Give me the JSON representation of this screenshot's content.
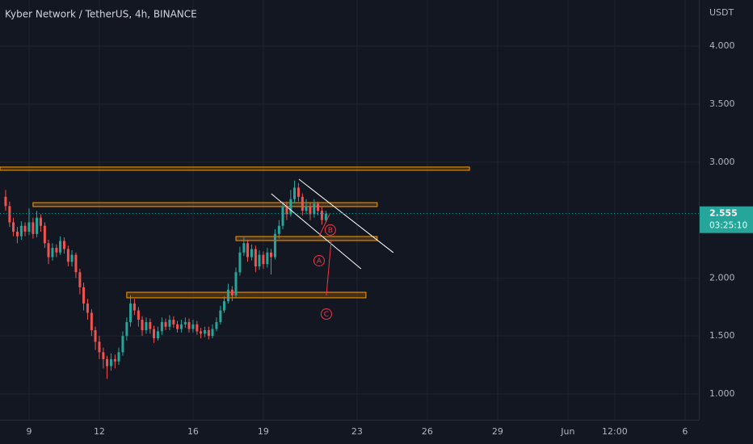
{
  "chart_data": {
    "type": "candlestick",
    "title": "Kyber Network / TetherUS, 4h, BINANCE",
    "currency": "USDT",
    "countdown": "03:25:10",
    "up_color": "#26a69a",
    "down_color": "#ef5350",
    "xlim": [
      7.76,
      37.59
    ],
    "xticks": [
      9,
      12,
      16,
      19,
      23,
      26,
      29,
      {
        "value": 32,
        "label": "Jun"
      },
      {
        "value": 34,
        "label": "12:00"
      },
      {
        "value": 37,
        "label": "6"
      }
    ],
    "ylim": [
      0.777,
      4.398
    ],
    "yticks": [
      {
        "value": 1,
        "label": "1.000"
      },
      {
        "value": 1.5,
        "label": "1.500"
      },
      {
        "value": 2,
        "label": "2.000"
      },
      {
        "value": 3,
        "label": "3.000"
      },
      {
        "value": 3.5,
        "label": "3.500"
      },
      {
        "value": 4,
        "label": "4.000"
      }
    ],
    "grid": true,
    "x": [
      8,
      8.17,
      8.33,
      8.5,
      8.67,
      8.83,
      9,
      9.17,
      9.33,
      9.5,
      9.67,
      9.83,
      10,
      10.17,
      10.33,
      10.5,
      10.67,
      10.83,
      11,
      11.17,
      11.33,
      11.5,
      11.67,
      11.83,
      12,
      12.17,
      12.33,
      12.5,
      12.67,
      12.83,
      13,
      13.17,
      13.33,
      13.5,
      13.67,
      13.83,
      14,
      14.17,
      14.33,
      14.5,
      14.67,
      14.83,
      15,
      15.17,
      15.33,
      15.5,
      15.67,
      15.83,
      16,
      16.17,
      16.33,
      16.5,
      16.67,
      16.83,
      17,
      17.17,
      17.33,
      17.5,
      17.67,
      17.83,
      18,
      18.17,
      18.33,
      18.5,
      18.67,
      18.83,
      19,
      19.17,
      19.33,
      19.5,
      19.67,
      19.83,
      20,
      20.17,
      20.33,
      20.5,
      20.67,
      20.83,
      21,
      21.17,
      21.33,
      21.5,
      21.67
    ],
    "open": [
      2.7,
      2.62,
      2.48,
      2.4,
      2.36,
      2.45,
      2.4,
      2.48,
      2.38,
      2.52,
      2.45,
      2.3,
      2.18,
      2.26,
      2.22,
      2.32,
      2.25,
      2.14,
      2.2,
      2.05,
      1.92,
      1.78,
      1.7,
      1.55,
      1.45,
      1.36,
      1.3,
      1.24,
      1.3,
      1.28,
      1.36,
      1.5,
      1.62,
      1.78,
      1.72,
      1.64,
      1.55,
      1.62,
      1.56,
      1.48,
      1.54,
      1.62,
      1.58,
      1.64,
      1.6,
      1.56,
      1.6,
      1.62,
      1.56,
      1.6,
      1.54,
      1.52,
      1.55,
      1.5,
      1.56,
      1.62,
      1.72,
      1.8,
      1.9,
      1.85,
      2.05,
      2.22,
      2.3,
      2.18,
      2.25,
      2.1,
      2.2,
      2.12,
      2.22,
      2.18,
      2.38,
      2.45,
      2.62,
      2.55,
      2.68,
      2.78,
      2.7,
      2.58,
      2.62,
      2.55,
      2.64,
      2.58,
      2.5
    ],
    "high": [
      2.76,
      2.66,
      2.52,
      2.44,
      2.49,
      2.48,
      2.6,
      2.52,
      2.58,
      2.55,
      2.48,
      2.33,
      2.3,
      2.29,
      2.36,
      2.35,
      2.28,
      2.24,
      2.22,
      2.08,
      1.96,
      1.82,
      1.73,
      1.58,
      1.5,
      1.4,
      1.33,
      1.35,
      1.34,
      1.4,
      1.54,
      1.66,
      1.85,
      1.82,
      1.75,
      1.67,
      1.66,
      1.65,
      1.59,
      1.58,
      1.66,
      1.65,
      1.68,
      1.67,
      1.63,
      1.64,
      1.66,
      1.65,
      1.64,
      1.63,
      1.57,
      1.58,
      1.58,
      1.6,
      1.66,
      1.76,
      1.84,
      1.95,
      1.93,
      2.09,
      2.27,
      2.36,
      2.33,
      2.29,
      2.28,
      2.24,
      2.23,
      2.26,
      2.25,
      2.42,
      2.5,
      2.66,
      2.66,
      2.76,
      2.84,
      2.82,
      2.73,
      2.68,
      2.65,
      2.68,
      2.66,
      2.61,
      2.58
    ],
    "low": [
      2.58,
      2.44,
      2.36,
      2.3,
      2.33,
      2.36,
      2.37,
      2.34,
      2.35,
      2.4,
      2.26,
      2.12,
      2.15,
      2.18,
      2.2,
      2.21,
      2.1,
      2.1,
      2.0,
      1.86,
      1.72,
      1.64,
      1.5,
      1.38,
      1.3,
      1.22,
      1.13,
      1.2,
      1.22,
      1.25,
      1.33,
      1.46,
      1.58,
      1.68,
      1.58,
      1.5,
      1.52,
      1.52,
      1.44,
      1.46,
      1.51,
      1.55,
      1.55,
      1.57,
      1.53,
      1.53,
      1.57,
      1.53,
      1.53,
      1.51,
      1.48,
      1.49,
      1.47,
      1.48,
      1.54,
      1.6,
      1.7,
      1.78,
      1.8,
      1.83,
      2.02,
      2.19,
      2.14,
      2.15,
      2.05,
      2.07,
      2.08,
      2.09,
      2.03,
      2.16,
      2.34,
      2.42,
      2.5,
      2.53,
      2.65,
      2.66,
      2.54,
      2.55,
      2.5,
      2.52,
      2.54,
      2.46,
      2.48
    ],
    "close": [
      2.62,
      2.48,
      2.4,
      2.36,
      2.45,
      2.4,
      2.48,
      2.38,
      2.52,
      2.45,
      2.3,
      2.18,
      2.26,
      2.22,
      2.32,
      2.25,
      2.14,
      2.2,
      2.05,
      1.92,
      1.78,
      1.7,
      1.55,
      1.45,
      1.36,
      1.3,
      1.24,
      1.3,
      1.28,
      1.36,
      1.5,
      1.62,
      1.78,
      1.72,
      1.64,
      1.55,
      1.62,
      1.56,
      1.48,
      1.54,
      1.62,
      1.58,
      1.64,
      1.6,
      1.56,
      1.6,
      1.62,
      1.56,
      1.6,
      1.54,
      1.52,
      1.55,
      1.5,
      1.56,
      1.62,
      1.72,
      1.8,
      1.9,
      1.85,
      2.05,
      2.22,
      2.3,
      2.18,
      2.25,
      2.1,
      2.2,
      2.12,
      2.22,
      2.18,
      2.38,
      2.45,
      2.62,
      2.55,
      2.68,
      2.78,
      2.7,
      2.58,
      2.62,
      2.55,
      2.64,
      2.58,
      2.5,
      2.555
    ],
    "zones": [
      {
        "x0": 7.76,
        "x1": 27.8,
        "top": 2.957,
        "bottom": 2.929,
        "color": "#ff9800"
      },
      {
        "x0": 9.17,
        "x1": 23.86,
        "top": 2.65,
        "bottom": 2.616,
        "color": "#ff9800"
      },
      {
        "x0": 17.83,
        "x1": 23.86,
        "top": 2.358,
        "bottom": 2.323,
        "color": "#ff9800"
      },
      {
        "x0": 13.17,
        "x1": 23.38,
        "top": 1.877,
        "bottom": 1.829,
        "color": "#ff9800"
      }
    ],
    "channel": [
      {
        "x0": 20.52,
        "y0": 2.852,
        "x1": 24.55,
        "y1": 2.219,
        "color": "#ffffff"
      },
      {
        "x0": 19.34,
        "y0": 2.727,
        "x1": 23.17,
        "y1": 2.079,
        "color": "#ffffff"
      }
    ],
    "wave_lines": [
      {
        "x0": 21.38,
        "y0": 2.36,
        "x1": 21.83,
        "y1": 2.55,
        "color": "#f23645"
      },
      {
        "x0": 21.69,
        "y0": 1.85,
        "x1": 21.9,
        "y1": 2.33,
        "color": "#f23645"
      }
    ],
    "wave_labels": [
      {
        "text": "A",
        "x": 21.38,
        "y": 2.149
      },
      {
        "text": "B",
        "x": 21.86,
        "y": 2.414
      },
      {
        "text": "C",
        "x": 21.69,
        "y": 1.689
      }
    ]
  }
}
